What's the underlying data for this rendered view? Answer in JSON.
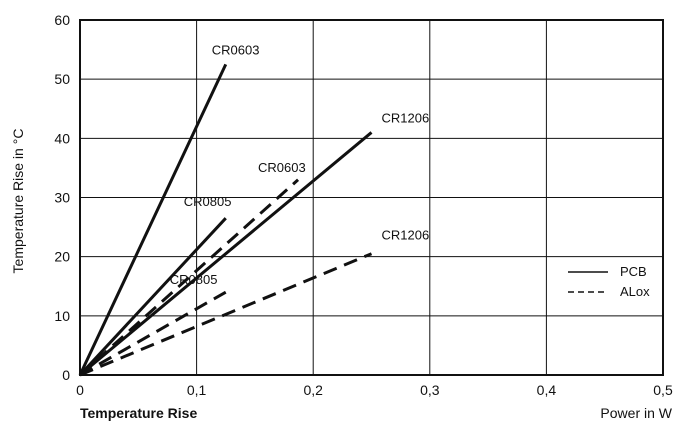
{
  "caption": "Temperature Rise",
  "chart_data": {
    "type": "line",
    "xlabel": "Power in W",
    "ylabel": "Temperature Rise in °C",
    "xlim": [
      0,
      0.5
    ],
    "ylim": [
      0,
      60
    ],
    "x_ticks": [
      "0",
      "0,1",
      "0,2",
      "0,3",
      "0,4",
      "0,5"
    ],
    "y_ticks": [
      "0",
      "10",
      "20",
      "30",
      "40",
      "50",
      "60"
    ],
    "grid": true,
    "legend": [
      {
        "name": "PCB",
        "style": "solid"
      },
      {
        "name": "ALox",
        "style": "dashed"
      }
    ],
    "legend_position": "right",
    "series": [
      {
        "name": "CR0603",
        "substrate": "PCB",
        "style": "solid",
        "x": [
          0,
          0.125
        ],
        "y": [
          0,
          52.5
        ]
      },
      {
        "name": "CR1206",
        "substrate": "PCB",
        "style": "solid",
        "x": [
          0,
          0.25
        ],
        "y": [
          0,
          41
        ]
      },
      {
        "name": "CR0805",
        "substrate": "PCB",
        "style": "solid",
        "x": [
          0,
          0.125
        ],
        "y": [
          0,
          26.5
        ]
      },
      {
        "name": "CR0603",
        "substrate": "ALox",
        "style": "dashed",
        "x": [
          0,
          0.187
        ],
        "y": [
          0,
          33
        ]
      },
      {
        "name": "CR1206",
        "substrate": "ALox",
        "style": "dashed",
        "x": [
          0,
          0.25
        ],
        "y": [
          0,
          20.5
        ]
      },
      {
        "name": "CR0805",
        "substrate": "ALox",
        "style": "dashed",
        "x": [
          0,
          0.125
        ],
        "y": [
          0,
          14
        ]
      }
    ]
  }
}
